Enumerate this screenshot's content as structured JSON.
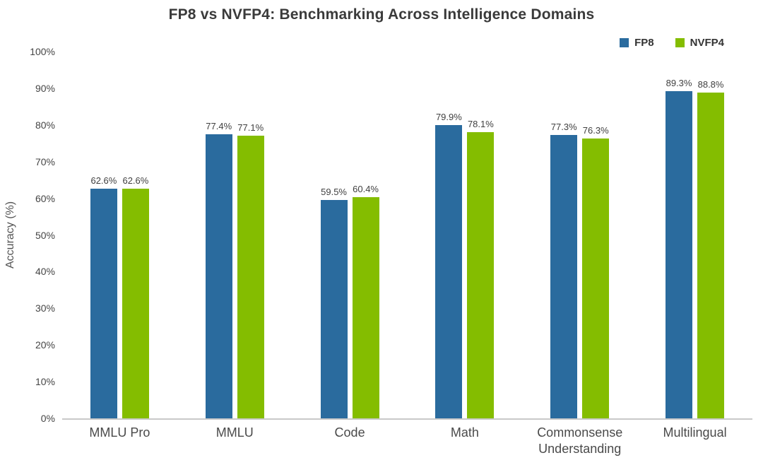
{
  "chart_data": {
    "type": "bar",
    "title": "FP8 vs NVFP4: Benchmarking Across Intelligence Domains",
    "ylabel": "Accuracy (%)",
    "xlabel": "",
    "categories": [
      "MMLU Pro",
      "MMLU",
      "Code",
      "Math",
      "Commonsense Understanding",
      "Multilingual"
    ],
    "series": [
      {
        "name": "FP8",
        "color": "#2a6b9e",
        "values": [
          62.6,
          77.4,
          59.5,
          79.9,
          77.3,
          89.3
        ]
      },
      {
        "name": "NVFP4",
        "color": "#84bd00",
        "values": [
          62.6,
          77.1,
          60.4,
          78.1,
          76.3,
          88.8
        ]
      }
    ],
    "value_suffix": "%",
    "ylim": [
      0,
      100
    ],
    "yticks": [
      "0%",
      "10%",
      "20%",
      "30%",
      "40%",
      "50%",
      "60%",
      "70%",
      "80%",
      "90%",
      "100%"
    ],
    "grid": false,
    "legend_position": "top-right",
    "background": "#ffffff"
  }
}
